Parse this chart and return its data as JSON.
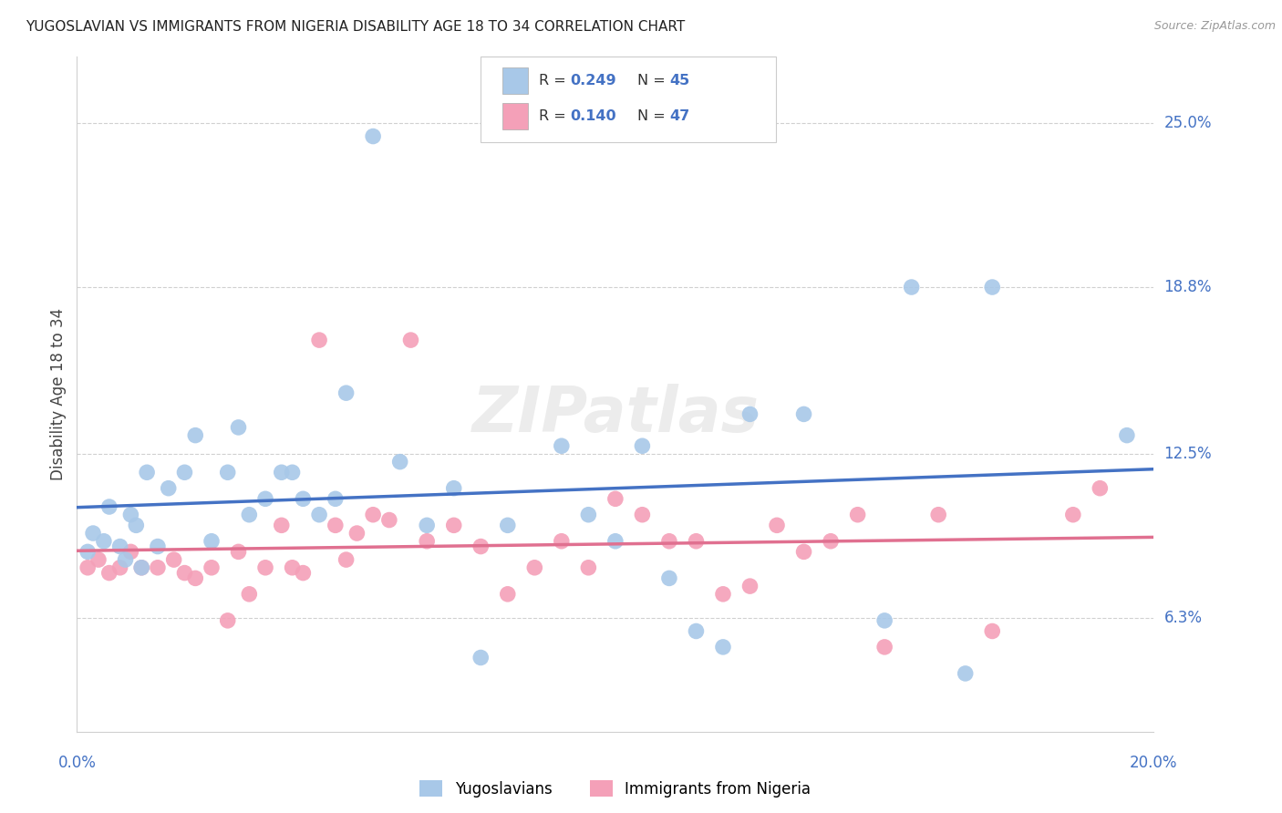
{
  "title": "YUGOSLAVIAN VS IMMIGRANTS FROM NIGERIA DISABILITY AGE 18 TO 34 CORRELATION CHART",
  "source": "Source: ZipAtlas.com",
  "ylabel": "Disability Age 18 to 34",
  "ytick_labels": [
    "6.3%",
    "12.5%",
    "18.8%",
    "25.0%"
  ],
  "ytick_vals": [
    6.3,
    12.5,
    18.8,
    25.0
  ],
  "xmin": 0.0,
  "xmax": 20.0,
  "ymin": 2.0,
  "ymax": 27.5,
  "legend_label1": "Yugoslavians",
  "legend_label2": "Immigrants from Nigeria",
  "R1": "0.249",
  "N1": "45",
  "R2": "0.140",
  "N2": "47",
  "blue_scatter": "#a8c8e8",
  "pink_scatter": "#f4a0b8",
  "blue_line": "#4472c4",
  "pink_line": "#e07090",
  "axis_label_color": "#4472c4",
  "yug_x": [
    0.2,
    0.3,
    0.5,
    0.6,
    0.8,
    0.9,
    1.0,
    1.1,
    1.2,
    1.3,
    1.5,
    1.7,
    2.0,
    2.2,
    2.5,
    2.8,
    3.0,
    3.2,
    3.5,
    3.8,
    4.0,
    4.2,
    4.5,
    4.8,
    5.0,
    5.5,
    6.0,
    6.5,
    7.0,
    7.5,
    8.0,
    9.0,
    9.5,
    10.0,
    10.5,
    11.0,
    11.5,
    12.0,
    12.5,
    13.5,
    15.0,
    15.5,
    16.5,
    17.0,
    19.5
  ],
  "yug_y": [
    8.8,
    9.5,
    9.2,
    10.5,
    9.0,
    8.5,
    10.2,
    9.8,
    8.2,
    11.8,
    9.0,
    11.2,
    11.8,
    13.2,
    9.2,
    11.8,
    13.5,
    10.2,
    10.8,
    11.8,
    11.8,
    10.8,
    10.2,
    10.8,
    14.8,
    24.5,
    12.2,
    9.8,
    11.2,
    4.8,
    9.8,
    12.8,
    10.2,
    9.2,
    12.8,
    7.8,
    5.8,
    5.2,
    14.0,
    14.0,
    6.2,
    18.8,
    4.2,
    18.8,
    13.2
  ],
  "nig_x": [
    0.2,
    0.4,
    0.6,
    0.8,
    1.0,
    1.2,
    1.5,
    1.8,
    2.0,
    2.2,
    2.5,
    2.8,
    3.0,
    3.2,
    3.5,
    3.8,
    4.0,
    4.2,
    4.5,
    4.8,
    5.0,
    5.2,
    5.5,
    5.8,
    6.2,
    6.5,
    7.0,
    7.5,
    8.0,
    8.5,
    9.0,
    9.5,
    10.0,
    10.5,
    11.0,
    11.5,
    12.0,
    12.5,
    13.0,
    13.5,
    14.0,
    14.5,
    15.0,
    16.0,
    17.0,
    18.5,
    19.0
  ],
  "nig_y": [
    8.2,
    8.5,
    8.0,
    8.2,
    8.8,
    8.2,
    8.2,
    8.5,
    8.0,
    7.8,
    8.2,
    6.2,
    8.8,
    7.2,
    8.2,
    9.8,
    8.2,
    8.0,
    16.8,
    9.8,
    8.5,
    9.5,
    10.2,
    10.0,
    16.8,
    9.2,
    9.8,
    9.0,
    7.2,
    8.2,
    9.2,
    8.2,
    10.8,
    10.2,
    9.2,
    9.2,
    7.2,
    7.5,
    9.8,
    8.8,
    9.2,
    10.2,
    5.2,
    10.2,
    5.8,
    10.2,
    11.2
  ]
}
